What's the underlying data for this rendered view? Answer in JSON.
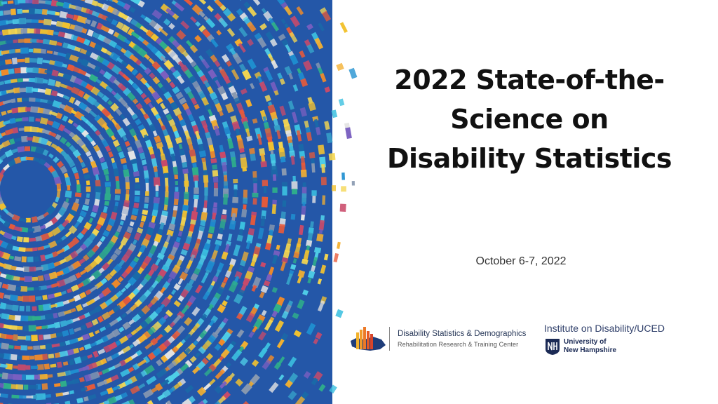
{
  "slide": {
    "title_lines": [
      "2022 State-of-the-",
      "Science on",
      "Disability Statistics"
    ],
    "date": "October 6-7, 2022"
  },
  "logos": {
    "dsd": {
      "name": "Disability Statistics & Demographics",
      "subtitle": "Rehabilitation Research & Training Center"
    },
    "iod": {
      "name": "Institute on Disability/UCED",
      "unh_line1": "University of",
      "unh_line2": "New Hampshire"
    }
  },
  "colors": {
    "art_background": "#2457a8",
    "title": "#111111",
    "unh_navy": "#1b2a55"
  },
  "icons": [
    "radial-mosaic-artwork",
    "bar-chart-usa-map-icon",
    "unh-shield-icon"
  ]
}
